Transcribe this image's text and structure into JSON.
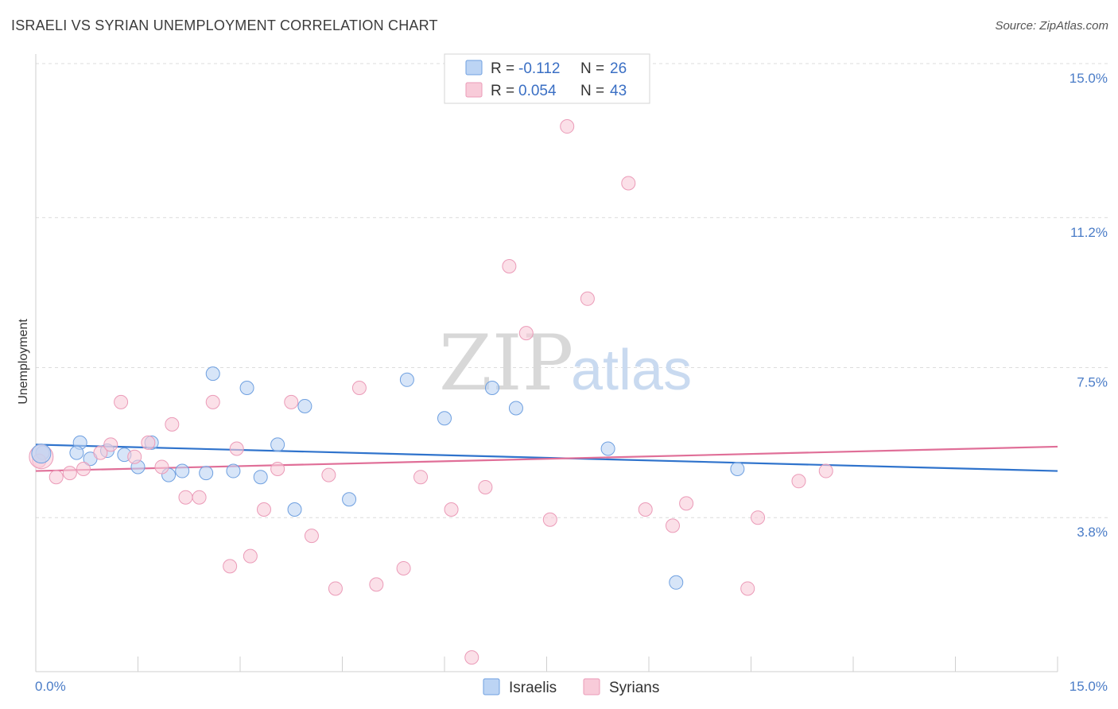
{
  "title": "ISRAELI VS SYRIAN UNEMPLOYMENT CORRELATION CHART",
  "source": "Source: ZipAtlas.com",
  "watermark": {
    "zip": "ZIP",
    "atlas": "atlas"
  },
  "chart_data": {
    "type": "scatter",
    "title": "ISRAELI VS SYRIAN UNEMPLOYMENT CORRELATION CHART",
    "xlabel": "",
    "ylabel": "Unemployment",
    "xlim": [
      0,
      15
    ],
    "ylim": [
      0,
      15
    ],
    "x_tick_labels": [
      "0.0%",
      "15.0%"
    ],
    "y_ticks": [
      3.8,
      7.5,
      11.2,
      15.0
    ],
    "y_tick_labels": [
      "3.8%",
      "7.5%",
      "11.2%",
      "15.0%"
    ],
    "grid": true,
    "legend_position": "top-center",
    "series": [
      {
        "name": "Israelis",
        "color": "#6fa0e0",
        "fill": "#bcd4f4",
        "line_color": "#2f73cc",
        "R": "-0.112",
        "N": "26",
        "trend": [
          [
            0,
            5.6
          ],
          [
            15,
            4.95
          ]
        ],
        "points": [
          [
            0.1,
            5.4
          ],
          [
            0.65,
            5.65
          ],
          [
            0.6,
            5.4
          ],
          [
            0.8,
            5.25
          ],
          [
            1.05,
            5.45
          ],
          [
            1.3,
            5.35
          ],
          [
            1.5,
            5.05
          ],
          [
            1.7,
            5.65
          ],
          [
            1.95,
            4.85
          ],
          [
            2.15,
            4.95
          ],
          [
            2.5,
            4.9
          ],
          [
            2.6,
            7.35
          ],
          [
            2.9,
            4.95
          ],
          [
            3.1,
            7.0
          ],
          [
            3.3,
            4.8
          ],
          [
            3.55,
            5.6
          ],
          [
            3.8,
            4.0
          ],
          [
            3.95,
            6.55
          ],
          [
            4.6,
            4.25
          ],
          [
            5.45,
            7.2
          ],
          [
            6.0,
            6.25
          ],
          [
            6.7,
            7.0
          ],
          [
            7.05,
            6.5
          ],
          [
            8.4,
            5.5
          ],
          [
            9.4,
            2.2
          ],
          [
            10.3,
            5.0
          ]
        ]
      },
      {
        "name": "Syrians",
        "color": "#eb9bb8",
        "fill": "#f8cbd9",
        "line_color": "#e06f98",
        "R": "0.054",
        "N": "43",
        "trend": [
          [
            0,
            4.95
          ],
          [
            15,
            5.55
          ]
        ],
        "points": [
          [
            0.05,
            5.2
          ],
          [
            0.3,
            4.8
          ],
          [
            0.5,
            4.9
          ],
          [
            0.7,
            5.0
          ],
          [
            0.95,
            5.4
          ],
          [
            1.1,
            5.6
          ],
          [
            1.25,
            6.65
          ],
          [
            1.45,
            5.3
          ],
          [
            1.65,
            5.65
          ],
          [
            1.85,
            5.05
          ],
          [
            2.0,
            6.1
          ],
          [
            2.2,
            4.3
          ],
          [
            2.4,
            4.3
          ],
          [
            2.6,
            6.65
          ],
          [
            2.85,
            2.6
          ],
          [
            2.95,
            5.5
          ],
          [
            3.15,
            2.85
          ],
          [
            3.35,
            4.0
          ],
          [
            3.55,
            5.0
          ],
          [
            3.75,
            6.65
          ],
          [
            4.05,
            3.35
          ],
          [
            4.3,
            4.85
          ],
          [
            4.4,
            2.05
          ],
          [
            4.75,
            7.0
          ],
          [
            5.0,
            2.15
          ],
          [
            5.4,
            2.55
          ],
          [
            5.65,
            4.8
          ],
          [
            6.1,
            4.0
          ],
          [
            6.4,
            0.35
          ],
          [
            6.6,
            4.55
          ],
          [
            6.95,
            10.0
          ],
          [
            7.2,
            8.35
          ],
          [
            7.55,
            3.75
          ],
          [
            7.8,
            13.45
          ],
          [
            8.1,
            9.2
          ],
          [
            8.7,
            12.05
          ],
          [
            8.95,
            4.0
          ],
          [
            9.35,
            3.6
          ],
          [
            9.55,
            4.15
          ],
          [
            10.45,
            2.05
          ],
          [
            10.6,
            3.8
          ],
          [
            11.2,
            4.7
          ],
          [
            11.6,
            4.95
          ]
        ]
      }
    ]
  }
}
